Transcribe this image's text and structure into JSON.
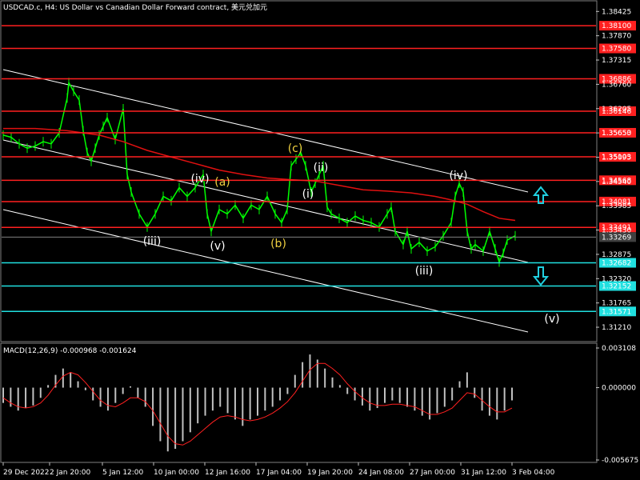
{
  "header": {
    "title": "USDCAD.c, H4:  US Dollar vs Canadian Dollar Forward contract, 美元兑加元"
  },
  "macd_label": "MACD(12,26,9) -0.000968 -0.001624",
  "chart_data": [
    {
      "type": "line",
      "name": "price",
      "price_axis": {
        "ticks": [
          "1.38425",
          "1.37870",
          "1.37315",
          "1.36760",
          "1.36205",
          "1.35650",
          "1.35095",
          "1.34540",
          "1.33985",
          "1.33430",
          "1.32875",
          "1.32320",
          "1.31765",
          "1.31210"
        ],
        "range": [
          1.309,
          1.3865
        ]
      },
      "time_axis": {
        "ticks": [
          "29 Dec 2022",
          "2 Jan 20:00",
          "5 Jan 12:00",
          "10 Jan 00:00",
          "12 Jan 16:00",
          "17 Jan 04:00",
          "19 Jan 20:00",
          "24 Jan 08:00",
          "27 Jan 00:00",
          "31 Jan 12:00",
          "3 Feb 04:00"
        ]
      },
      "series": [
        {
          "name": "",
          "x": [
            0,
            10,
            20,
            30,
            40,
            50,
            60,
            70,
            80,
            82,
            88,
            95,
            100,
            105,
            110,
            115,
            120,
            125,
            130,
            140,
            150,
            155,
            160,
            170,
            180,
            190,
            200,
            210,
            220,
            230,
            240,
            250,
            255,
            260,
            270,
            280,
            290,
            300,
            310,
            320,
            330,
            340,
            348,
            355,
            360,
            366,
            372,
            378,
            385,
            390,
            395,
            400,
            405,
            410,
            420,
            430,
            440,
            450,
            460,
            470,
            480,
            485,
            490,
            500,
            505,
            510,
            520,
            530,
            540,
            550,
            560,
            565,
            570,
            575,
            580,
            585,
            590,
            600,
            608,
            615,
            620,
            625,
            630,
            640
          ],
          "values": [
            1.356,
            1.3555,
            1.354,
            1.353,
            1.3535,
            1.3545,
            1.354,
            1.3565,
            1.3645,
            1.368,
            1.366,
            1.364,
            1.357,
            1.352,
            1.35,
            1.353,
            1.356,
            1.358,
            1.36,
            1.355,
            1.362,
            1.347,
            1.343,
            1.338,
            1.335,
            1.338,
            1.342,
            1.341,
            1.344,
            1.342,
            1.344,
            1.347,
            1.338,
            1.334,
            1.339,
            1.338,
            1.34,
            1.337,
            1.34,
            1.339,
            1.342,
            1.338,
            1.336,
            1.339,
            1.349,
            1.3505,
            1.352,
            1.349,
            1.343,
            1.345,
            1.347,
            1.349,
            1.3395,
            1.338,
            1.337,
            1.336,
            1.3375,
            1.3365,
            1.336,
            1.335,
            1.338,
            1.3395,
            1.334,
            1.331,
            1.334,
            1.33,
            1.3315,
            1.3295,
            1.3305,
            1.333,
            1.336,
            1.342,
            1.345,
            1.343,
            1.334,
            1.33,
            1.331,
            1.3295,
            1.334,
            1.33,
            1.327,
            1.329,
            1.332,
            1.333
          ]
        },
        {
          "name": "",
          "x": [
            0,
            40,
            80,
            100,
            120,
            150,
            180,
            210,
            240,
            270,
            300,
            330,
            360,
            390,
            420,
            450,
            480,
            510,
            540,
            560,
            580,
            600,
            620,
            640
          ],
          "values": [
            1.3575,
            1.3575,
            1.357,
            1.3565,
            1.356,
            1.3545,
            1.3525,
            1.351,
            1.3495,
            1.348,
            1.347,
            1.3462,
            1.3458,
            1.3455,
            1.3445,
            1.3435,
            1.3432,
            1.3428,
            1.342,
            1.3412,
            1.3402,
            1.3385,
            1.337,
            1.3365
          ]
        }
      ],
      "horizontal_levels": {
        "red": [
          "1.38100",
          "1.37580",
          "1.36886",
          "1.36146",
          "1.35653",
          "1.35103",
          "1.34568",
          "1.34081",
          "1.33491"
        ],
        "cyan": [
          "1.32682",
          "1.32152",
          "1.31571"
        ],
        "current_price": "1.33269"
      },
      "wave_labels": [
        "(iii)",
        "(iv)",
        "(v)",
        "(a)",
        "(b)",
        "(c)",
        "(i)",
        "(ii)",
        "(iii)",
        "(iv)",
        "(v)"
      ]
    },
    {
      "type": "bar",
      "name": "MACD",
      "axis": {
        "ticks": [
          "0.003108",
          "0.000000",
          "-0.005675"
        ],
        "range": [
          -0.005675,
          0.003108
        ]
      },
      "histogram": [
        -0.0012,
        -0.0015,
        -0.0018,
        -0.0016,
        -0.0014,
        -0.0008,
        0.0002,
        0.001,
        0.0015,
        0.0012,
        0.0005,
        -0.0002,
        -0.001,
        -0.0015,
        -0.0018,
        -0.0012,
        -0.0005,
        0.0001,
        -0.0008,
        -0.0015,
        -0.003,
        -0.0042,
        -0.005,
        -0.0048,
        -0.0042,
        -0.0035,
        -0.0028,
        -0.0022,
        -0.0018,
        -0.0015,
        -0.002,
        -0.0025,
        -0.003,
        -0.0025,
        -0.0022,
        -0.0018,
        -0.0015,
        -0.001,
        -0.0005,
        0.001,
        0.002,
        0.0026,
        0.0022,
        0.0015,
        0.0008,
        0.0002,
        -0.0005,
        -0.001,
        -0.0014,
        -0.0018,
        -0.0016,
        -0.0012,
        -0.001,
        -0.0012,
        -0.0015,
        -0.0018,
        -0.0022,
        -0.0025,
        -0.002,
        -0.0015,
        -0.001,
        0.0005,
        0.0012,
        -0.0008,
        -0.0018,
        -0.0022,
        -0.0025,
        -0.0018,
        -0.001
      ],
      "signal": [
        -0.0008,
        -0.0012,
        -0.0015,
        -0.0016,
        -0.0015,
        -0.0012,
        -0.0006,
        0.0002,
        0.0009,
        0.0012,
        0.001,
        0.0004,
        -0.0003,
        -0.001,
        -0.0014,
        -0.0015,
        -0.0012,
        -0.0008,
        -0.0008,
        -0.0011,
        -0.0018,
        -0.0028,
        -0.0038,
        -0.0044,
        -0.0045,
        -0.0042,
        -0.0037,
        -0.0032,
        -0.0027,
        -0.0023,
        -0.0022,
        -0.0023,
        -0.0025,
        -0.0026,
        -0.0025,
        -0.0023,
        -0.002,
        -0.0016,
        -0.0011,
        -0.0004,
        0.0005,
        0.0014,
        0.0019,
        0.0019,
        0.0015,
        0.001,
        0.0003,
        -0.0003,
        -0.0008,
        -0.0012,
        -0.0014,
        -0.0014,
        -0.0013,
        -0.0013,
        -0.0014,
        -0.0015,
        -0.0018,
        -0.0021,
        -0.0021,
        -0.0019,
        -0.0016,
        -0.001,
        -0.0004,
        -0.0005,
        -0.001,
        -0.0015,
        -0.0019,
        -0.0019,
        -0.0016
      ]
    }
  ],
  "colors": {
    "background": "#000000",
    "grid": "#3a3a3a",
    "candle": "#00ff00",
    "resistance": "#ff2020",
    "support": "#20e0e0",
    "ma": "#e01010",
    "channel": "#ffffff",
    "wave_white": "#ffffff",
    "wave_yellow": "#f0d040",
    "macd_hist": "#c0c0c0",
    "macd_signal": "#ff2020",
    "arrow": "#20d0e0"
  }
}
